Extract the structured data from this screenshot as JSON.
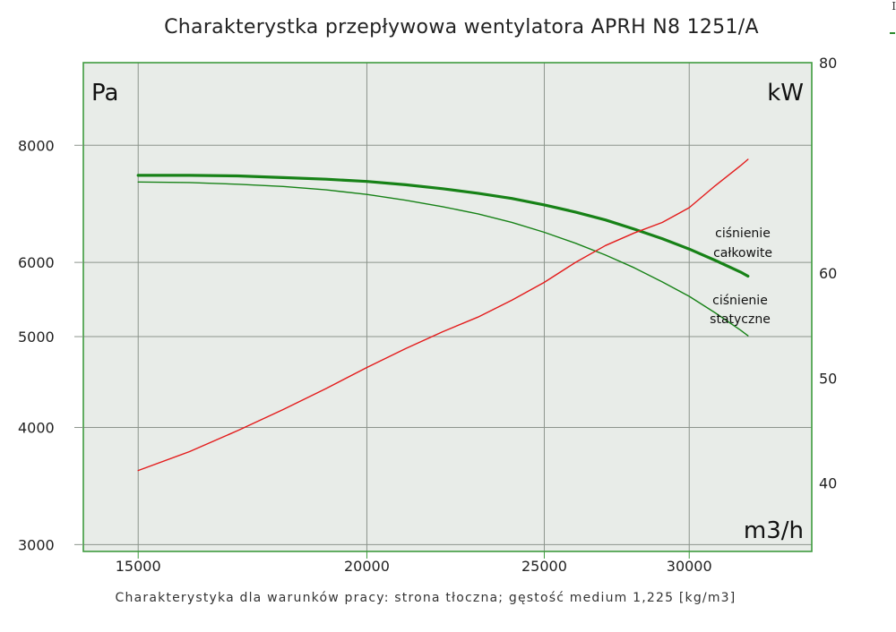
{
  "corner_text": "I",
  "chart_data": {
    "type": "line",
    "title": "Charakterystka przepływowa wentylatora APRH N8 1251/A",
    "footnote": "Charakterystyka dla warunków pracy: strona tłoczna; gęstość medium 1,225 [kg/m3]",
    "xlabel": "m3/h",
    "ylabel_left": "Pa",
    "ylabel_right": "kW",
    "x_scale": "log",
    "y_left_scale": "log",
    "xlim": [
      14000,
      35000
    ],
    "ylim_left": [
      2950,
      9800
    ],
    "ylim_right": [
      33.5,
      80
    ],
    "x_ticks": [
      15000,
      20000,
      25000,
      30000
    ],
    "y_left_ticks": [
      3000,
      4000,
      5000,
      6000,
      8000
    ],
    "y_right_ticks": [
      40,
      50,
      60,
      80
    ],
    "grid": true,
    "series": [
      {
        "name": "ciśnienie całkowite",
        "label_lines": [
          "ciśnienie",
          "całkowite"
        ],
        "axis": "left",
        "color": "#178217",
        "width": 3.2,
        "x": [
          15000,
          16000,
          17000,
          18000,
          19000,
          20000,
          21000,
          22000,
          23000,
          24000,
          25000,
          26000,
          27000,
          28000,
          29000,
          30000,
          31000,
          32000,
          32300
        ],
        "values": [
          7430,
          7430,
          7420,
          7390,
          7360,
          7320,
          7260,
          7190,
          7110,
          7020,
          6910,
          6790,
          6660,
          6510,
          6360,
          6200,
          6030,
          5860,
          5800
        ]
      },
      {
        "name": "ciśnienie statyczne",
        "label_lines": [
          "ciśnienie",
          "statyczne"
        ],
        "axis": "left",
        "color": "#178217",
        "width": 1.4,
        "x": [
          15000,
          16000,
          17000,
          18000,
          19000,
          20000,
          21000,
          22000,
          23000,
          24000,
          25000,
          26000,
          27000,
          28000,
          29000,
          30000,
          31000,
          32000,
          32300
        ],
        "values": [
          7310,
          7300,
          7270,
          7230,
          7170,
          7090,
          6990,
          6880,
          6760,
          6620,
          6460,
          6290,
          6110,
          5920,
          5720,
          5520,
          5300,
          5080,
          5010
        ]
      },
      {
        "name": "moc",
        "axis": "right",
        "color": "#e31b1b",
        "width": 1.4,
        "x": [
          15000,
          16000,
          17000,
          18000,
          19000,
          20000,
          21000,
          22000,
          23000,
          24000,
          25000,
          26000,
          27000,
          28000,
          29000,
          30000,
          31000,
          32000,
          32300
        ],
        "values": [
          41.2,
          43.0,
          45.0,
          47.0,
          49.0,
          51.0,
          52.8,
          54.4,
          55.8,
          57.4,
          59.1,
          61.0,
          62.6,
          63.8,
          64.8,
          66.2,
          68.3,
          70.2,
          70.8
        ]
      }
    ]
  }
}
